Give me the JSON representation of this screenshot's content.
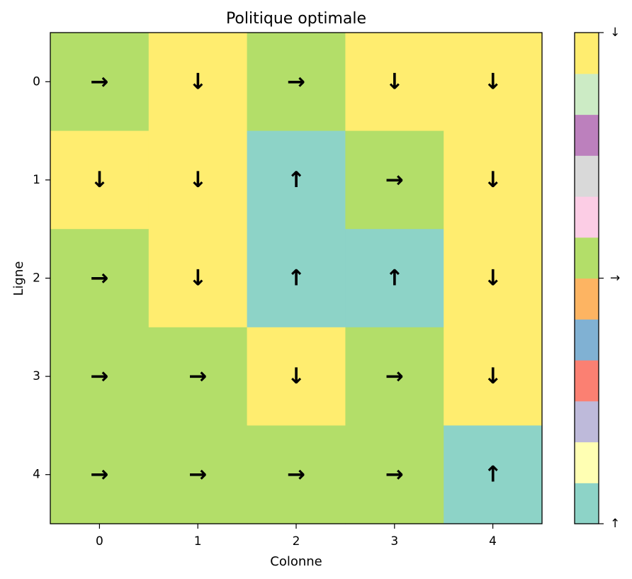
{
  "chart_data": {
    "type": "heatmap",
    "title": "Politique optimale",
    "xlabel": "Colonne",
    "ylabel": "Ligne",
    "x_ticks": [
      "0",
      "1",
      "2",
      "3",
      "4"
    ],
    "y_ticks": [
      "0",
      "1",
      "2",
      "3",
      "4"
    ],
    "grid": false,
    "action_colors": {
      "↑": "#8dd3c7",
      "→": "#b3de69",
      "↓": "#ffed6f"
    },
    "cells": [
      [
        "→",
        "↓",
        "→",
        "↓",
        "↓"
      ],
      [
        "↓",
        "↓",
        "↑",
        "→",
        "↓"
      ],
      [
        "→",
        "↓",
        "↑",
        "↑",
        "↓"
      ],
      [
        "→",
        "→",
        "↓",
        "→",
        "↓"
      ],
      [
        "→",
        "→",
        "→",
        "→",
        "↑"
      ]
    ],
    "colorbar": {
      "placement": "right",
      "colors": [
        "#8dd3c7",
        "#ffffb3",
        "#bebada",
        "#fb8072",
        "#80b1d3",
        "#fdb462",
        "#b3de69",
        "#fccde5",
        "#d9d9d9",
        "#bc80bd",
        "#ccebc5",
        "#ffed6f"
      ],
      "ticks": [
        {
          "label": "↑",
          "value": 0
        },
        {
          "label": "→",
          "value": 0.5
        },
        {
          "label": "↓",
          "value": 1
        }
      ]
    }
  }
}
